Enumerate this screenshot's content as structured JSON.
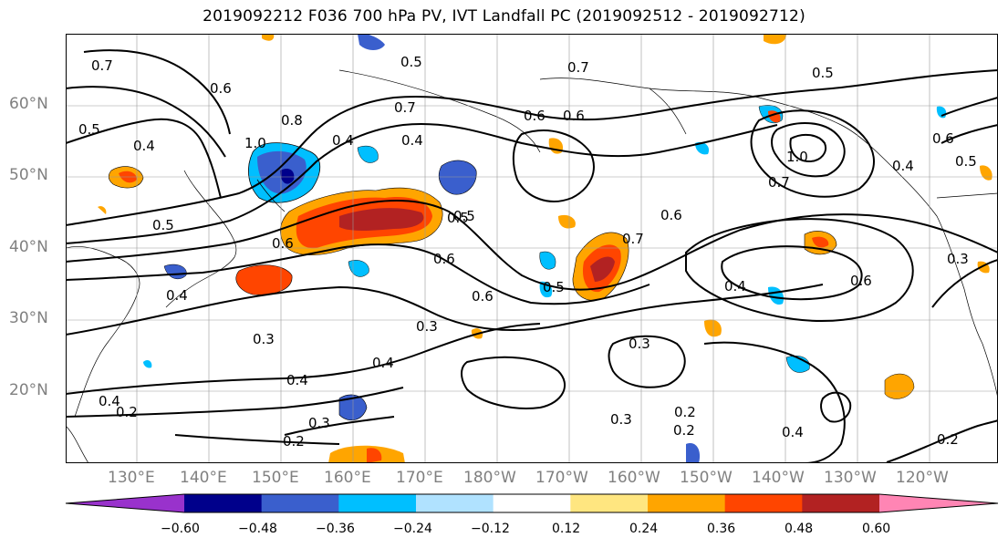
{
  "title": "2019092212 F036 700 hPa PV, IVT Landfall PC (2019092512 - 2019092712)",
  "lat_labels": [
    "60°N",
    "50°N",
    "40°N",
    "30°N",
    "20°N"
  ],
  "lon_labels": [
    "130°E",
    "140°E",
    "150°E",
    "160°E",
    "170°E",
    "180°W",
    "170°W",
    "160°W",
    "150°W",
    "140°W",
    "130°W",
    "120°W"
  ],
  "colorbar": {
    "ticks": [
      "−0.60",
      "−0.48",
      "−0.36",
      "−0.24",
      "−0.12",
      "0.12",
      "0.24",
      "0.36",
      "0.48",
      "0.60"
    ],
    "colors": [
      "#9932cc",
      "#00008b",
      "#3a5fcd",
      "#00bfff",
      "#b0e2ff",
      "#ffffff",
      "#ffe680",
      "#ffa500",
      "#ff4500",
      "#b22222",
      "#ff85b4"
    ]
  },
  "contour_labels": [
    "0.7",
    "0.6",
    "0.5",
    "0.4",
    "0.5",
    "0.7",
    "0.6",
    "0.4",
    "0.4",
    "1.0",
    "0.8",
    "0.6",
    "0.5",
    "0.4",
    "0.5",
    "0.3",
    "0.4",
    "0.3",
    "0.2",
    "0.4",
    "0.2",
    "0.3",
    "0.4",
    "0.3",
    "0.2",
    "0.6",
    "0.7",
    "0.5",
    "0.6",
    "0.7",
    "1.0",
    "0.5",
    "0.6",
    "0.5",
    "0.7",
    "0.6",
    "0.4",
    "0.3",
    "0.6",
    "0.4",
    "0.2",
    "0.2",
    "0.3",
    "0.4",
    "0.6",
    "0.5"
  ]
}
